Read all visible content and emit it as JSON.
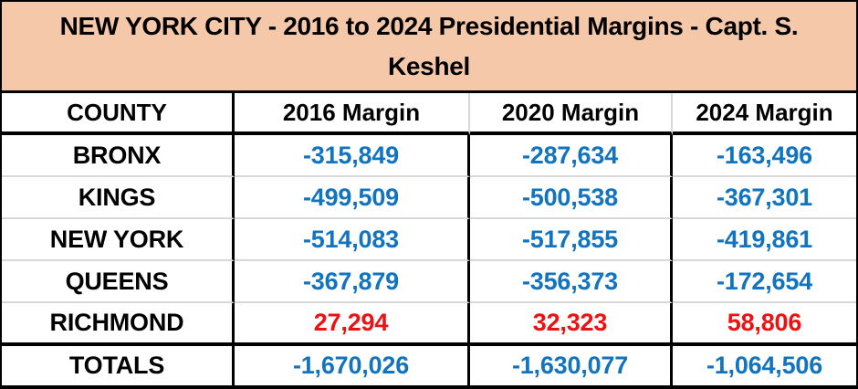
{
  "title": {
    "line1": "NEW YORK CITY -  2016 to 2024 Presidential Margins - Capt. S.",
    "line2": "Keshel"
  },
  "columns": [
    "COUNTY",
    "2016 Margin",
    "2020 Margin",
    "2024 Margin"
  ],
  "rows": [
    {
      "county": "BRONX",
      "m2016": "-315,849",
      "m2020": "-287,634",
      "m2024": "-163,496"
    },
    {
      "county": "KINGS",
      "m2016": "-499,509",
      "m2020": "-500,538",
      "m2024": "-367,301"
    },
    {
      "county": "NEW YORK",
      "m2016": "-514,083",
      "m2020": "-517,855",
      "m2024": "-419,861"
    },
    {
      "county": "QUEENS",
      "m2016": "-367,879",
      "m2020": "-356,373",
      "m2024": "-172,654"
    },
    {
      "county": "RICHMOND",
      "m2016": "27,294",
      "m2020": "32,323",
      "m2024": "58,806"
    }
  ],
  "totals": {
    "label": "TOTALS",
    "m2016": "-1,670,026",
    "m2020": "-1,630,077",
    "m2024": "-1,064,506"
  },
  "colors": {
    "title_bg": "#f5c8a9",
    "negative_value": "#1273be",
    "positive_value": "#ee1111",
    "grid_light": "#d8d8d8",
    "grid_dark": "#000000"
  },
  "chart_data": {
    "type": "table",
    "title": "NEW YORK CITY - 2016 to 2024 Presidential Margins - Capt. S. Keshel",
    "columns": [
      "COUNTY",
      "2016 Margin",
      "2020 Margin",
      "2024 Margin"
    ],
    "rows": [
      [
        "BRONX",
        -315849,
        -287634,
        -163496
      ],
      [
        "KINGS",
        -499509,
        -500538,
        -367301
      ],
      [
        "NEW YORK",
        -514083,
        -517855,
        -419861
      ],
      [
        "QUEENS",
        -367879,
        -356373,
        -172654
      ],
      [
        "RICHMOND",
        27294,
        32323,
        58806
      ],
      [
        "TOTALS",
        -1670026,
        -1630077,
        -1064506
      ]
    ],
    "value_color_rule": "negative values blue, positive values red"
  }
}
